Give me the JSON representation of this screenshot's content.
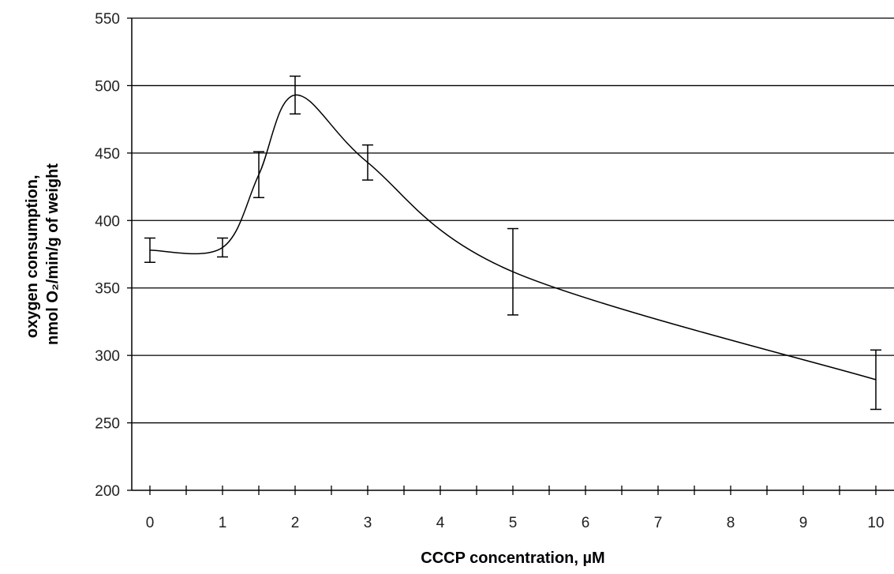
{
  "chart_data": {
    "type": "line",
    "xlabel": "CCCP concentration, µM",
    "ylabel_lines": [
      "oxygen consumption,",
      "nmol O₂/min/g of weight"
    ],
    "x_ticks": [
      0,
      1,
      2,
      3,
      4,
      5,
      6,
      7,
      8,
      9,
      10
    ],
    "x_minor_step": 0.5,
    "xlim": [
      -0.25,
      10.25
    ],
    "ylim": [
      200,
      550
    ],
    "y_ticks": [
      200,
      250,
      300,
      350,
      400,
      450,
      500,
      550
    ],
    "grid": "horizontal",
    "legend": "none",
    "line_color": "#000000",
    "series": [
      {
        "x": [
          0,
          1,
          1.5,
          2,
          3,
          5,
          10
        ],
        "y": [
          378,
          380,
          434,
          493,
          443,
          362,
          282
        ],
        "error": [
          9,
          7,
          17,
          14,
          13,
          32,
          22
        ]
      }
    ]
  }
}
